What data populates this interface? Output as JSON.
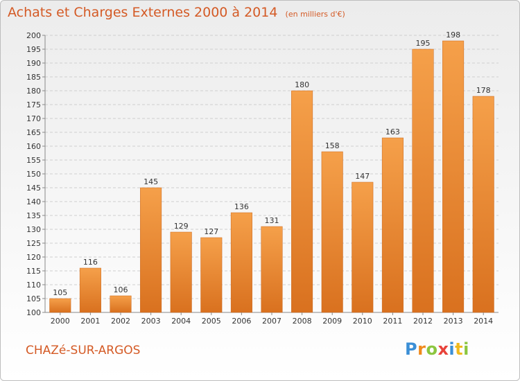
{
  "chart_data": {
    "type": "bar",
    "title": "Achats et Charges Externes 2000 à 2014",
    "unit_label": "(en milliers d'€)",
    "xlabel": "",
    "ylabel": "",
    "categories": [
      "2000",
      "2001",
      "2002",
      "2003",
      "2004",
      "2005",
      "2006",
      "2007",
      "2008",
      "2009",
      "2010",
      "2011",
      "2012",
      "2013",
      "2014"
    ],
    "values": [
      105,
      116,
      106,
      145,
      129,
      127,
      136,
      131,
      180,
      158,
      147,
      163,
      195,
      198,
      178
    ],
    "ylim": [
      100,
      200
    ],
    "y_ticks": [
      100,
      105,
      110,
      115,
      120,
      125,
      130,
      135,
      140,
      145,
      150,
      155,
      160,
      165,
      170,
      175,
      180,
      185,
      190,
      195,
      200
    ],
    "grid": true,
    "data_labels": true,
    "bar_color": "#f5a04a",
    "bar_color_dark": "#d9711f"
  },
  "footer": {
    "commune": "CHAZé-SUR-ARGOS",
    "logo_letters": [
      {
        "ch": "P",
        "color": "#3b8fd6"
      },
      {
        "ch": "r",
        "color": "#f08a1c"
      },
      {
        "ch": "o",
        "color": "#8cc63f"
      },
      {
        "ch": "x",
        "color": "#e8423a"
      },
      {
        "ch": "i",
        "color": "#3b8fd6"
      },
      {
        "ch": "t",
        "color": "#f0b91c"
      },
      {
        "ch": "i",
        "color": "#8cc63f"
      }
    ]
  }
}
